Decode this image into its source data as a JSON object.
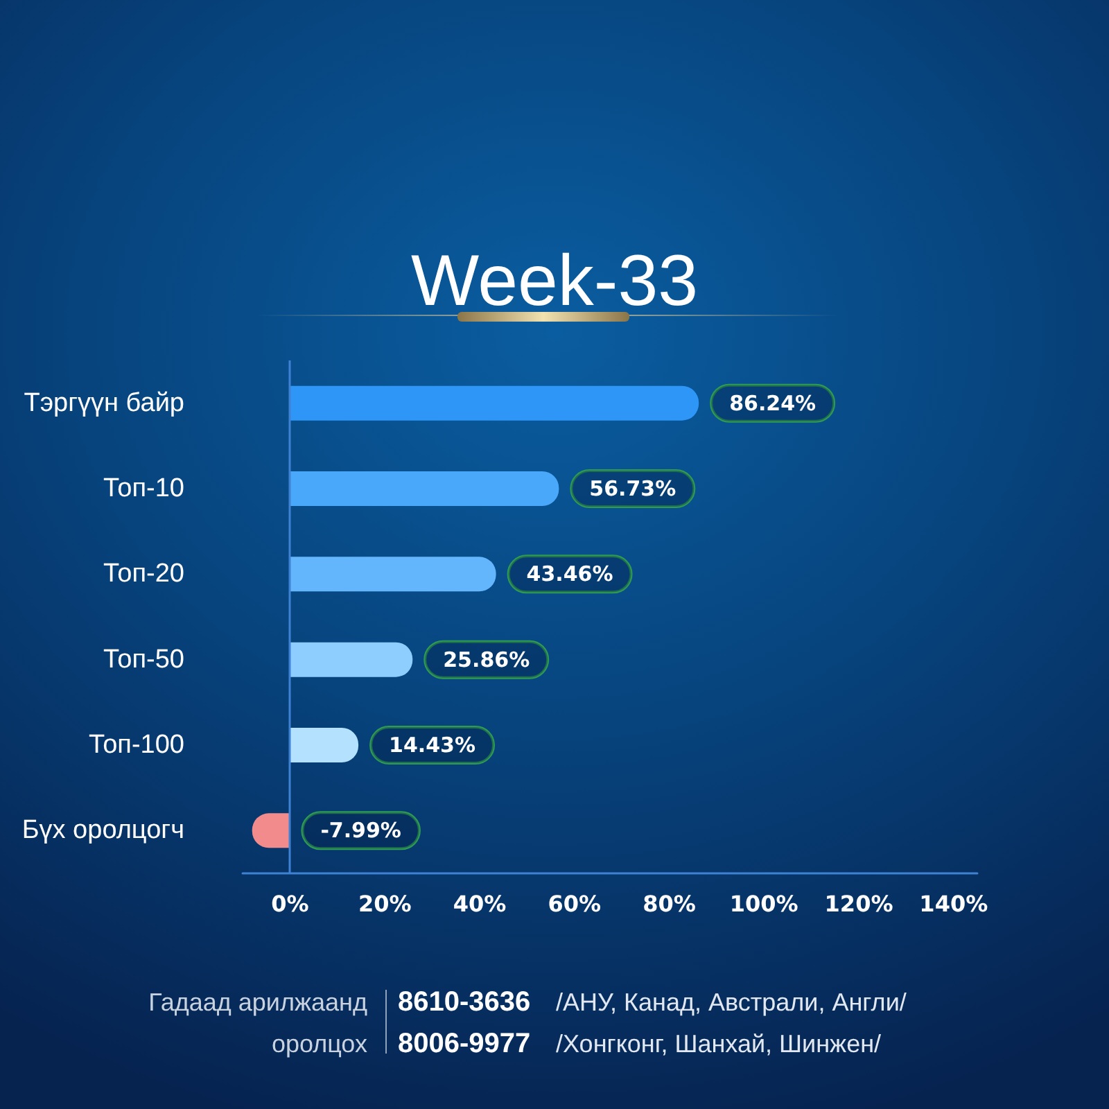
{
  "chart_data": {
    "type": "bar",
    "orientation": "horizontal",
    "title": "Week-33",
    "categories": [
      "Тэргүүн байр",
      "Топ-10",
      "Топ-20",
      "Топ-50",
      "Топ-100",
      "Бүх оролцогч"
    ],
    "values": [
      86.24,
      56.73,
      43.46,
      25.86,
      14.43,
      -7.99
    ],
    "colors": [
      "#2d96f6",
      "#4aa8fb",
      "#63b6fc",
      "#8ecefe",
      "#b4e2fe",
      "#f28b8b"
    ],
    "value_labels": [
      "86.24%",
      "56.73%",
      "43.46%",
      "25.86%",
      "14.43%",
      "-7.99%"
    ],
    "xlim": [
      -10,
      145
    ],
    "xticks": [
      {
        "value": 0,
        "label": "0%"
      },
      {
        "value": 20,
        "label": "20%"
      },
      {
        "value": 40,
        "label": "40%"
      },
      {
        "value": 60,
        "label": "60%"
      },
      {
        "value": 80,
        "label": "80%"
      },
      {
        "value": 100,
        "label": "100%"
      },
      {
        "value": 120,
        "label": "120%"
      },
      {
        "value": 140,
        "label": "140%"
      }
    ],
    "ref_lines": [
      {
        "axis": "x",
        "value": 0,
        "color": "#3f82d4"
      }
    ],
    "annotations": [
      "Гадаад арилжаанд оролцох",
      "8610-3636",
      "/АНУ, Канад, Австрали, Англи/",
      "8006-9977",
      "/Хонгконг, Шанхай, Шинжен/"
    ]
  }
}
